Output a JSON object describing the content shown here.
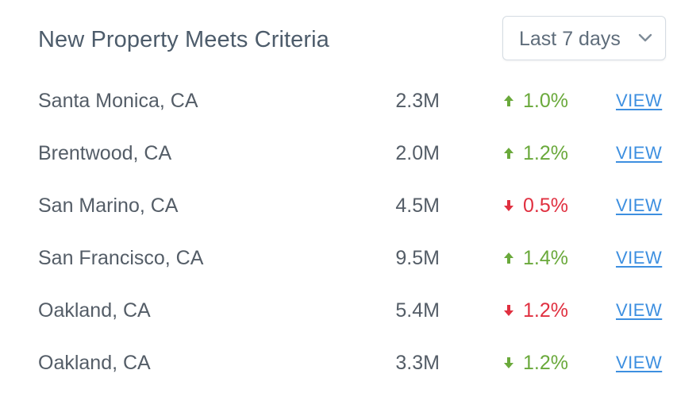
{
  "widget": {
    "title": "New Property Meets Criteria",
    "range_select": {
      "selected": "Last 7 days",
      "icon": "chevron-down-icon"
    },
    "colors": {
      "up": "#6aa93b",
      "down": "#e03040",
      "up_muted": "#6aa93b",
      "link": "#3d8fe0"
    },
    "rows": [
      {
        "location": "Santa Monica, CA",
        "price": "2.3M",
        "change": "1.0%",
        "direction": "up",
        "change_color": "up",
        "action": "VIEW"
      },
      {
        "location": "Brentwood, CA",
        "price": "2.0M",
        "change": "1.2%",
        "direction": "up",
        "change_color": "up",
        "action": "VIEW"
      },
      {
        "location": "San Marino, CA",
        "price": "4.5M",
        "change": "0.5%",
        "direction": "down",
        "change_color": "down",
        "action": "VIEW"
      },
      {
        "location": "San Francisco, CA",
        "price": "9.5M",
        "change": "1.4%",
        "direction": "up",
        "change_color": "up",
        "action": "VIEW"
      },
      {
        "location": "Oakland, CA",
        "price": "5.4M",
        "change": "1.2%",
        "direction": "down",
        "change_color": "down",
        "action": "VIEW"
      },
      {
        "location": "Oakland, CA",
        "price": "3.3M",
        "change": "1.2%",
        "direction": "down",
        "change_color": "up_muted",
        "action": "VIEW"
      }
    ]
  }
}
